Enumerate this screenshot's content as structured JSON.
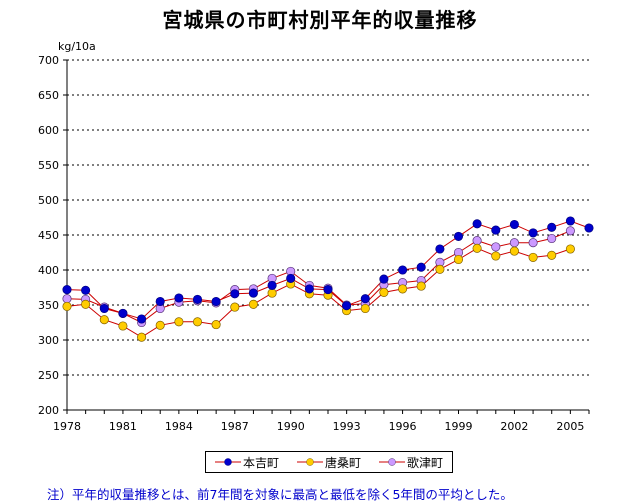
{
  "chart_data": {
    "type": "line",
    "title": "宮城県の市町村別平年的収量推移",
    "ylabel": "kg/10a",
    "xlabel": "",
    "ylim": [
      200,
      700
    ],
    "yticks": [
      200,
      250,
      300,
      350,
      400,
      450,
      500,
      550,
      600,
      650,
      700
    ],
    "x": [
      1978,
      1979,
      1980,
      1981,
      1982,
      1983,
      1984,
      1985,
      1986,
      1987,
      1988,
      1989,
      1990,
      1991,
      1992,
      1993,
      1994,
      1995,
      1996,
      1997,
      1998,
      1999,
      2000,
      2001,
      2002,
      2003,
      2004,
      2005,
      2006
    ],
    "xtick_labels": [
      "1978",
      "1981",
      "1984",
      "1987",
      "1990",
      "1993",
      "1996",
      "1999",
      "2002",
      "2005"
    ],
    "series": [
      {
        "name": "本吉町",
        "color": "#0000cc",
        "line": "#cc0000",
        "values": [
          372,
          371,
          345,
          338,
          330,
          355,
          360,
          358,
          355,
          366,
          367,
          378,
          388,
          373,
          372,
          349,
          359,
          387,
          400,
          404,
          430,
          448,
          466,
          457,
          465,
          453,
          461,
          470,
          460
        ]
      },
      {
        "name": "唐桑町",
        "color": "#ffcc00",
        "line": "#cc0000",
        "values": [
          348,
          351,
          329,
          320,
          304,
          321,
          326,
          326,
          322,
          347,
          351,
          367,
          380,
          366,
          364,
          342,
          345,
          368,
          373,
          377,
          401,
          415,
          431,
          420,
          427,
          418,
          421,
          430,
          null
        ]
      },
      {
        "name": "歌津町",
        "color": "#cc99ff",
        "line": "#cc0000",
        "values": [
          359,
          358,
          347,
          338,
          325,
          345,
          354,
          356,
          353,
          372,
          373,
          388,
          398,
          378,
          374,
          350,
          352,
          379,
          382,
          385,
          411,
          425,
          442,
          433,
          439,
          439,
          445,
          456,
          null
        ]
      }
    ],
    "legend": "bottom",
    "grid": true
  },
  "footnote": "注）平年的収量推移とは、前7年間を対象に最高と最低を除く5年間の平均とした。"
}
